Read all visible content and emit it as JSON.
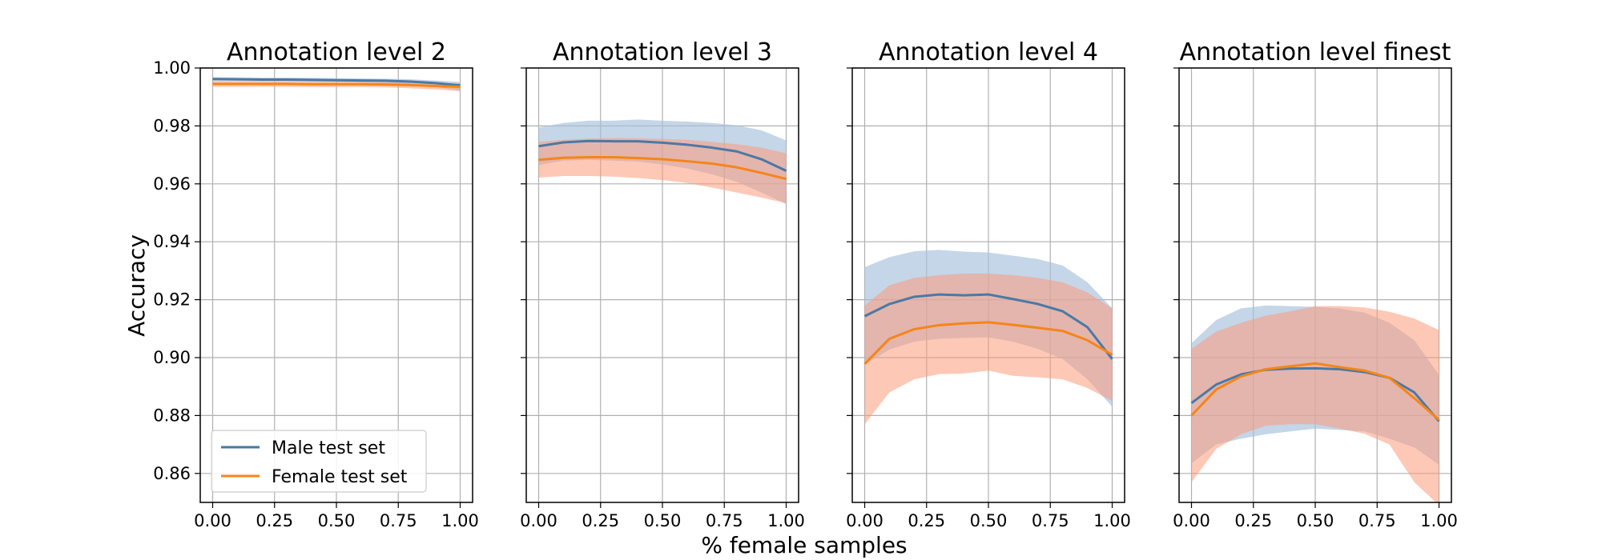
{
  "figure": {
    "xlabel": "% female samples",
    "ylabel": "Accuracy"
  },
  "legend": {
    "items": [
      {
        "label": "Male test set",
        "color": "#4a79a6"
      },
      {
        "label": "Female test set",
        "color": "#f58518"
      }
    ],
    "placement": "lower-left",
    "panel": 0
  },
  "colors": {
    "male_line": "#4a79a6",
    "female_line": "#f58518",
    "male_band": "#a6c0db",
    "female_band": "#fb9a7a",
    "grid": "#b0b0b0"
  },
  "chart_data": [
    {
      "type": "line",
      "title": "Annotation level 2",
      "xlim": [
        0,
        1
      ],
      "ylim": [
        0.85,
        1.0
      ],
      "x": [
        0,
        0.1,
        0.2,
        0.3,
        0.4,
        0.5,
        0.6,
        0.7,
        0.8,
        0.9,
        1.0
      ],
      "xticks": [
        "0.00",
        "0.25",
        "0.50",
        "0.75",
        "1.00"
      ],
      "yticks": [
        "0.86",
        "0.88",
        "0.90",
        "0.92",
        "0.94",
        "0.96",
        "0.98",
        "1.00"
      ],
      "grid": true,
      "series": [
        {
          "name": "Male test set",
          "values": [
            0.9962,
            0.9961,
            0.996,
            0.996,
            0.9959,
            0.9958,
            0.9957,
            0.9956,
            0.9953,
            0.9948,
            0.994
          ],
          "lower": [
            0.9955,
            0.9955,
            0.9954,
            0.9954,
            0.9953,
            0.9952,
            0.995,
            0.9948,
            0.9943,
            0.9935,
            0.9922
          ],
          "upper": [
            0.9968,
            0.9968,
            0.9967,
            0.9967,
            0.9966,
            0.9965,
            0.9964,
            0.9963,
            0.9961,
            0.9957,
            0.9952
          ]
        },
        {
          "name": "Female test set",
          "values": [
            0.9945,
            0.9945,
            0.9945,
            0.9945,
            0.9944,
            0.9944,
            0.9944,
            0.9943,
            0.9941,
            0.9938,
            0.9935
          ],
          "lower": [
            0.9935,
            0.9935,
            0.9935,
            0.9935,
            0.9934,
            0.9934,
            0.9934,
            0.9933,
            0.993,
            0.9926,
            0.992
          ],
          "upper": [
            0.9955,
            0.9955,
            0.9955,
            0.9955,
            0.9954,
            0.9954,
            0.9954,
            0.9953,
            0.9951,
            0.9949,
            0.9947
          ]
        }
      ]
    },
    {
      "type": "line",
      "title": "Annotation level 3",
      "xlim": [
        0,
        1
      ],
      "ylim": [
        0.85,
        1.0
      ],
      "x": [
        0,
        0.1,
        0.2,
        0.3,
        0.4,
        0.5,
        0.6,
        0.7,
        0.8,
        0.9,
        1.0
      ],
      "xticks": [
        "0.00",
        "0.25",
        "0.50",
        "0.75",
        "1.00"
      ],
      "grid": true,
      "series": [
        {
          "name": "Male test set",
          "values": [
            0.973,
            0.9743,
            0.9748,
            0.9747,
            0.9747,
            0.9742,
            0.9735,
            0.9725,
            0.9712,
            0.9685,
            0.9645
          ],
          "lower": [
            0.9665,
            0.968,
            0.9683,
            0.968,
            0.9677,
            0.9667,
            0.9653,
            0.9633,
            0.9607,
            0.957,
            0.953
          ],
          "upper": [
            0.9795,
            0.981,
            0.9818,
            0.9818,
            0.9822,
            0.9818,
            0.9815,
            0.981,
            0.9802,
            0.9785,
            0.975
          ]
        },
        {
          "name": "Female test set",
          "values": [
            0.9683,
            0.969,
            0.9692,
            0.9692,
            0.9689,
            0.9685,
            0.9678,
            0.967,
            0.9657,
            0.9638,
            0.9617
          ],
          "lower": [
            0.9622,
            0.9627,
            0.9627,
            0.9625,
            0.962,
            0.9613,
            0.9603,
            0.9587,
            0.957,
            0.9553,
            0.9533
          ],
          "upper": [
            0.9745,
            0.9752,
            0.9756,
            0.9758,
            0.9757,
            0.9755,
            0.9752,
            0.9745,
            0.9737,
            0.9725,
            0.9705
          ]
        }
      ]
    },
    {
      "type": "line",
      "title": "Annotation level 4",
      "xlim": [
        0,
        1
      ],
      "ylim": [
        0.85,
        1.0
      ],
      "x": [
        0,
        0.1,
        0.2,
        0.3,
        0.4,
        0.5,
        0.6,
        0.7,
        0.8,
        0.9,
        1.0
      ],
      "xticks": [
        "0.00",
        "0.25",
        "0.50",
        "0.75",
        "1.00"
      ],
      "grid": true,
      "series": [
        {
          "name": "Male test set",
          "values": [
            0.9143,
            0.9185,
            0.921,
            0.9218,
            0.9215,
            0.9218,
            0.9202,
            0.9185,
            0.916,
            0.9105,
            0.8995
          ],
          "lower": [
            0.8975,
            0.9028,
            0.9055,
            0.9065,
            0.9068,
            0.907,
            0.9055,
            0.903,
            0.8995,
            0.8925,
            0.883
          ],
          "upper": [
            0.9312,
            0.9347,
            0.9367,
            0.9372,
            0.9366,
            0.9363,
            0.9352,
            0.934,
            0.9318,
            0.926,
            0.917
          ]
        },
        {
          "name": "Female test set",
          "values": [
            0.8978,
            0.9065,
            0.9098,
            0.9112,
            0.9118,
            0.9122,
            0.9113,
            0.9103,
            0.9092,
            0.906,
            0.901
          ],
          "lower": [
            0.877,
            0.888,
            0.8925,
            0.8943,
            0.8945,
            0.8955,
            0.8937,
            0.8932,
            0.8925,
            0.8895,
            0.885
          ],
          "upper": [
            0.918,
            0.925,
            0.9275,
            0.9285,
            0.929,
            0.929,
            0.9285,
            0.9275,
            0.926,
            0.9225,
            0.917
          ]
        }
      ]
    },
    {
      "type": "line",
      "title": "Annotation level finest",
      "xlim": [
        0,
        1
      ],
      "ylim": [
        0.85,
        1.0
      ],
      "x": [
        0,
        0.1,
        0.2,
        0.3,
        0.4,
        0.5,
        0.6,
        0.7,
        0.8,
        0.9,
        1.0
      ],
      "xticks": [
        "0.00",
        "0.25",
        "0.50",
        "0.75",
        "1.00"
      ],
      "grid": true,
      "series": [
        {
          "name": "Male test set",
          "values": [
            0.8843,
            0.8907,
            0.8942,
            0.8958,
            0.8962,
            0.8963,
            0.896,
            0.895,
            0.893,
            0.888,
            0.878
          ],
          "lower": [
            0.8635,
            0.87,
            0.872,
            0.8735,
            0.8745,
            0.8755,
            0.875,
            0.8745,
            0.872,
            0.869,
            0.863
          ],
          "upper": [
            0.905,
            0.913,
            0.917,
            0.918,
            0.9178,
            0.9175,
            0.917,
            0.9155,
            0.912,
            0.906,
            0.894
          ]
        },
        {
          "name": "Female test set",
          "values": [
            0.88,
            0.889,
            0.8935,
            0.896,
            0.897,
            0.898,
            0.8967,
            0.8955,
            0.893,
            0.886,
            0.8785
          ],
          "lower": [
            0.857,
            0.8685,
            0.8735,
            0.8765,
            0.877,
            0.877,
            0.8755,
            0.8737,
            0.87,
            0.857,
            0.849
          ],
          "upper": [
            0.903,
            0.909,
            0.912,
            0.9145,
            0.916,
            0.9178,
            0.9178,
            0.9173,
            0.9158,
            0.9135,
            0.9095
          ]
        }
      ]
    }
  ]
}
